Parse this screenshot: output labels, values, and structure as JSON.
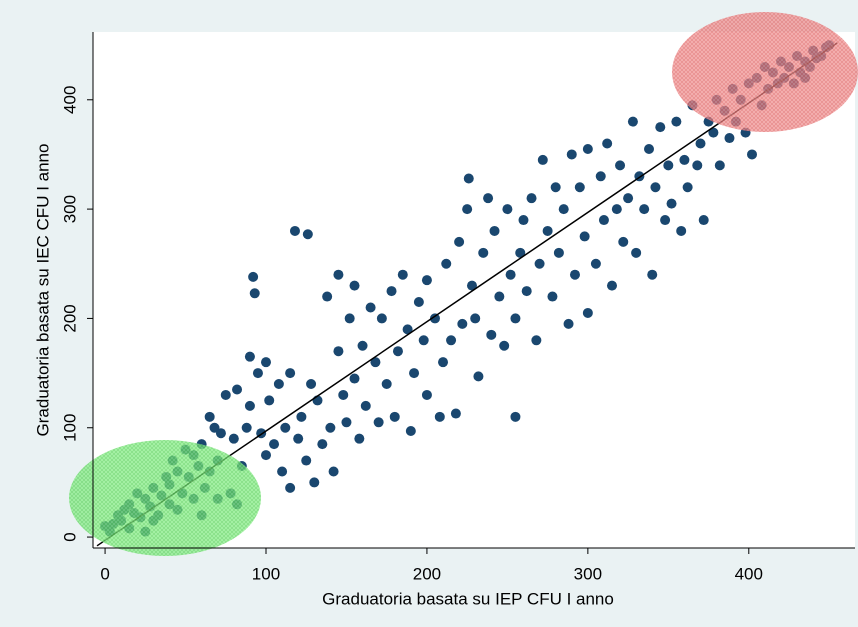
{
  "chart_data": {
    "type": "scatter",
    "x_label": "Graduatoria basata su IEP CFU I anno",
    "y_label": "Graduatoria basata su IEC CFU I anno",
    "color": "#1a476f",
    "x": [
      0,
      3,
      5,
      8,
      10,
      12,
      15,
      15,
      18,
      20,
      22,
      25,
      25,
      28,
      30,
      30,
      33,
      35,
      38,
      40,
      40,
      42,
      45,
      45,
      48,
      50,
      52,
      55,
      55,
      58,
      60,
      60,
      62,
      65,
      65,
      68,
      70,
      70,
      72,
      75,
      78,
      80,
      82,
      82,
      85,
      88,
      90,
      90,
      92,
      93,
      95,
      97,
      100,
      100,
      102,
      105,
      108,
      110,
      112,
      115,
      115,
      118,
      120,
      122,
      125,
      126,
      128,
      130,
      132,
      135,
      138,
      140,
      142,
      145,
      145,
      148,
      150,
      152,
      155,
      155,
      158,
      160,
      162,
      165,
      168,
      170,
      172,
      175,
      178,
      180,
      182,
      185,
      188,
      190,
      192,
      195,
      198,
      200,
      200,
      205,
      208,
      210,
      212,
      215,
      218,
      220,
      222,
      225,
      226,
      228,
      230,
      232,
      235,
      238,
      240,
      242,
      245,
      248,
      250,
      252,
      255,
      255,
      258,
      260,
      262,
      265,
      268,
      270,
      272,
      275,
      278,
      280,
      282,
      285,
      288,
      290,
      292,
      295,
      298,
      300,
      300,
      305,
      308,
      310,
      312,
      315,
      318,
      320,
      322,
      325,
      328,
      330,
      332,
      335,
      338,
      340,
      342,
      345,
      348,
      350,
      352,
      355,
      358,
      360,
      362,
      365,
      368,
      370,
      372,
      375,
      378,
      380,
      382,
      385,
      388,
      390,
      392,
      395,
      398,
      400,
      402,
      405,
      408,
      410,
      412,
      415,
      418,
      420,
      422,
      425,
      428,
      430,
      432,
      435,
      438,
      440,
      442,
      445,
      448,
      450,
      435
    ],
    "values": [
      10,
      5,
      12,
      20,
      15,
      25,
      8,
      30,
      22,
      40,
      18,
      35,
      5,
      28,
      45,
      15,
      20,
      38,
      55,
      30,
      48,
      70,
      25,
      60,
      40,
      80,
      55,
      35,
      75,
      65,
      20,
      85,
      45,
      60,
      110,
      100,
      70,
      35,
      95,
      130,
      40,
      90,
      30,
      135,
      65,
      100,
      120,
      165,
      238,
      223,
      150,
      95,
      160,
      75,
      125,
      85,
      140,
      60,
      100,
      45,
      150,
      280,
      90,
      110,
      70,
      277,
      140,
      50,
      125,
      85,
      220,
      100,
      60,
      240,
      170,
      130,
      105,
      200,
      145,
      230,
      90,
      175,
      120,
      210,
      160,
      105,
      200,
      140,
      225,
      110,
      170,
      240,
      190,
      97,
      150,
      215,
      180,
      235,
      130,
      200,
      110,
      160,
      250,
      180,
      113,
      270,
      195,
      300,
      328,
      230,
      200,
      147,
      260,
      310,
      185,
      280,
      220,
      175,
      300,
      240,
      110,
      200,
      260,
      290,
      225,
      310,
      180,
      250,
      345,
      280,
      220,
      320,
      260,
      300,
      195,
      350,
      240,
      320,
      275,
      205,
      355,
      250,
      330,
      290,
      360,
      230,
      300,
      340,
      270,
      310,
      380,
      260,
      330,
      300,
      355,
      240,
      320,
      375,
      290,
      340,
      305,
      380,
      280,
      345,
      320,
      395,
      340,
      360,
      290,
      380,
      370,
      400,
      340,
      390,
      365,
      410,
      380,
      400,
      370,
      415,
      350,
      420,
      395,
      430,
      410,
      425,
      415,
      435,
      420,
      430,
      415,
      440,
      425,
      435,
      430,
      445,
      438,
      440,
      448,
      450,
      420
    ],
    "fit_line": {
      "x": [
        -5,
        455
      ],
      "values": [
        -8,
        452
      ],
      "color": "#000000"
    },
    "xlim": [
      -7.5,
      466
    ],
    "ylim": [
      -10,
      462
    ],
    "xticks": [
      0,
      100,
      200,
      300,
      400
    ],
    "yticks": [
      0,
      100,
      200,
      300,
      400
    ],
    "grid": false
  }
}
